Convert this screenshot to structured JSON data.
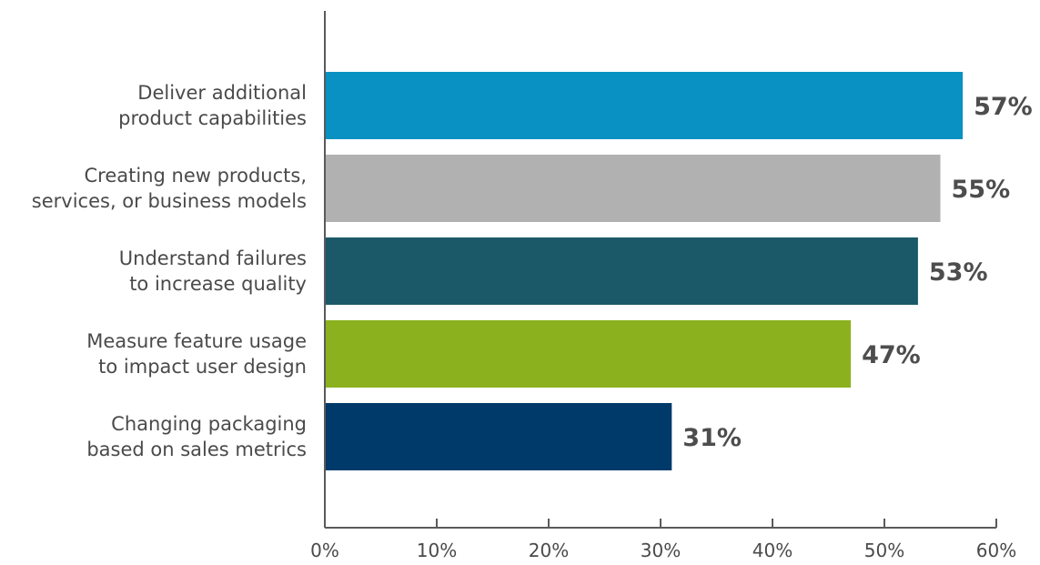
{
  "chart_data": {
    "type": "bar",
    "orientation": "horizontal",
    "categories": [
      [
        "Deliver additional",
        "product capabilities"
      ],
      [
        "Creating new products,",
        "services, or business models"
      ],
      [
        "Understand failures",
        "to increase quality"
      ],
      [
        "Measure feature usage",
        "to impact user design"
      ],
      [
        "Changing packaging",
        "based on sales metrics"
      ]
    ],
    "values": [
      57,
      55,
      53,
      47,
      31
    ],
    "value_labels": [
      "57%",
      "55%",
      "53%",
      "47%",
      "31%"
    ],
    "colors": [
      "#0891c2",
      "#b1b1b1",
      "#1c5968",
      "#8cb11f",
      "#003a6a"
    ],
    "xlim": [
      0,
      60
    ],
    "x_ticks": [
      0,
      10,
      20,
      30,
      40,
      50,
      60
    ],
    "x_tick_labels": [
      "0%",
      "10%",
      "20%",
      "30%",
      "40%",
      "50%",
      "60%"
    ],
    "title": "",
    "xlabel": "",
    "ylabel": "",
    "grid": false,
    "legend": "none"
  }
}
